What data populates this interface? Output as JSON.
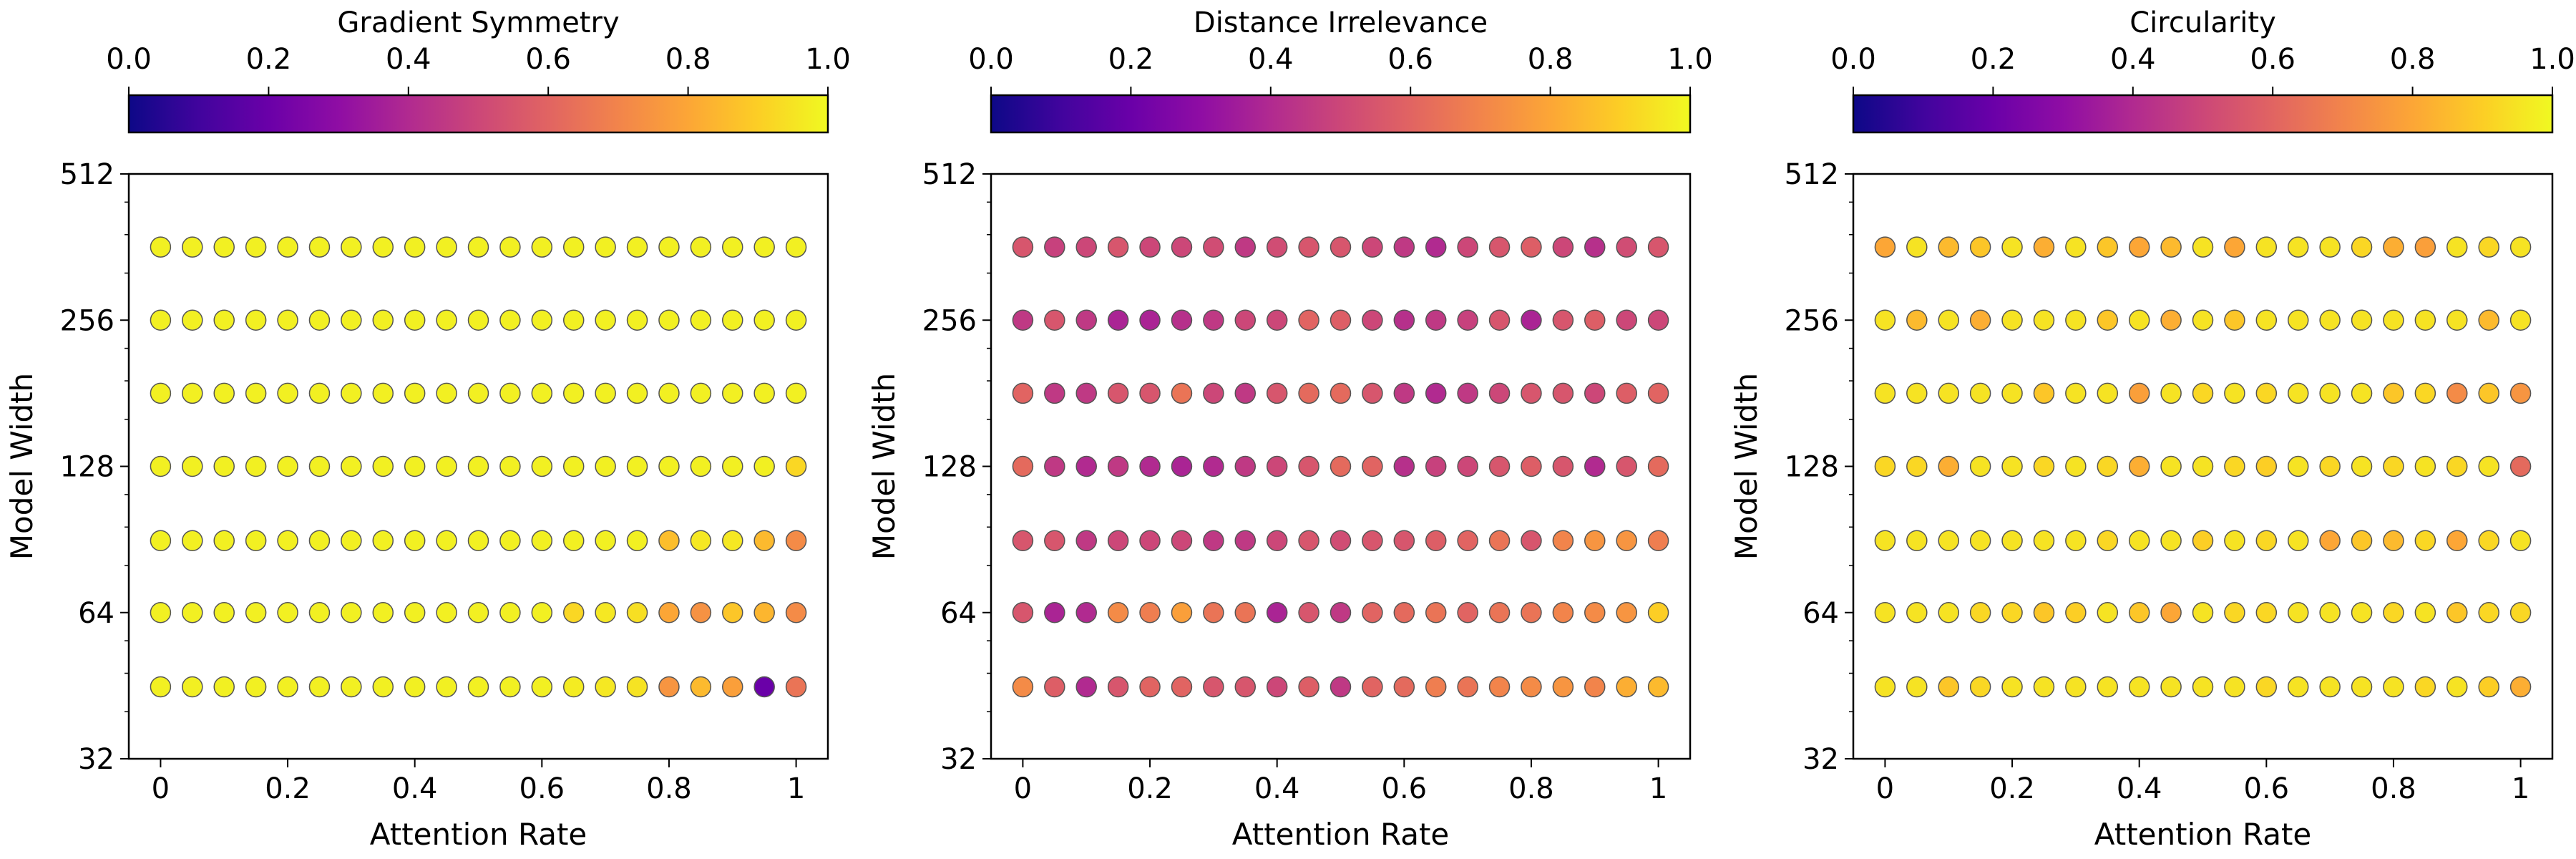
{
  "chart_data": [
    {
      "type": "scatter",
      "colorbar_title": "Gradient Symmetry",
      "colorbar_ticks": [
        "0.0",
        "0.2",
        "0.4",
        "0.6",
        "0.8",
        "1.0"
      ],
      "xlabel": "Attention Rate",
      "ylabel": "Model Width",
      "x_ticks": [
        "0",
        "0.2",
        "0.4",
        "0.6",
        "0.8",
        "1"
      ],
      "y_ticks": [
        "32",
        "64",
        "128",
        "256",
        "512"
      ],
      "y_scale": "log2",
      "xlim": [
        -0.05,
        1.05
      ],
      "ylim": [
        32,
        512
      ],
      "x": [
        0,
        0.05,
        0.1,
        0.15,
        0.2,
        0.25,
        0.3,
        0.35,
        0.4,
        0.45,
        0.5,
        0.55,
        0.6,
        0.65,
        0.7,
        0.75,
        0.8,
        0.85,
        0.9,
        0.95,
        1.0
      ],
      "y": [
        45,
        64,
        90,
        128,
        181,
        256,
        362
      ],
      "values": [
        [
          0.98,
          0.98,
          0.98,
          0.98,
          0.98,
          0.98,
          0.98,
          0.98,
          0.98,
          0.98,
          0.98,
          0.98,
          0.98,
          0.97,
          0.96,
          0.95,
          0.75,
          0.85,
          0.78,
          0.2,
          0.65
        ],
        [
          0.98,
          0.98,
          0.98,
          0.98,
          0.98,
          0.98,
          0.98,
          0.98,
          0.98,
          0.98,
          0.98,
          0.98,
          0.98,
          0.92,
          0.96,
          0.94,
          0.8,
          0.74,
          0.88,
          0.84,
          0.72
        ],
        [
          0.98,
          0.98,
          0.98,
          0.98,
          0.98,
          0.98,
          0.98,
          0.98,
          0.98,
          0.98,
          0.98,
          0.98,
          0.98,
          0.98,
          0.98,
          0.98,
          0.86,
          0.96,
          0.96,
          0.85,
          0.72
        ],
        [
          0.98,
          0.98,
          0.98,
          0.98,
          0.98,
          0.98,
          0.98,
          0.98,
          0.98,
          0.98,
          0.98,
          0.98,
          0.98,
          0.98,
          0.98,
          0.98,
          0.98,
          0.98,
          0.98,
          0.98,
          0.92
        ],
        [
          0.98,
          0.98,
          0.98,
          0.98,
          0.98,
          0.98,
          0.98,
          0.98,
          0.98,
          0.98,
          0.98,
          0.98,
          0.98,
          0.98,
          0.98,
          0.98,
          0.98,
          0.98,
          0.98,
          0.98,
          0.98
        ],
        [
          0.98,
          0.98,
          0.98,
          0.98,
          0.98,
          0.98,
          0.98,
          0.98,
          0.98,
          0.98,
          0.98,
          0.98,
          0.98,
          0.98,
          0.98,
          0.98,
          0.98,
          0.98,
          0.98,
          0.98,
          0.98
        ],
        [
          0.98,
          0.98,
          0.98,
          0.98,
          0.98,
          0.98,
          0.98,
          0.98,
          0.98,
          0.98,
          0.98,
          0.98,
          0.98,
          0.98,
          0.98,
          0.98,
          0.98,
          0.98,
          0.98,
          0.98,
          0.98
        ]
      ]
    },
    {
      "type": "scatter",
      "colorbar_title": "Distance Irrelevance",
      "colorbar_ticks": [
        "0.0",
        "0.2",
        "0.4",
        "0.6",
        "0.8",
        "1.0"
      ],
      "xlabel": "Attention Rate",
      "ylabel": "Model Width",
      "x_ticks": [
        "0",
        "0.2",
        "0.4",
        "0.6",
        "0.8",
        "1"
      ],
      "y_ticks": [
        "32",
        "64",
        "128",
        "256",
        "512"
      ],
      "y_scale": "log2",
      "xlim": [
        -0.05,
        1.05
      ],
      "ylim": [
        32,
        512
      ],
      "x": [
        0,
        0.05,
        0.1,
        0.15,
        0.2,
        0.25,
        0.3,
        0.35,
        0.4,
        0.45,
        0.5,
        0.55,
        0.6,
        0.65,
        0.7,
        0.75,
        0.8,
        0.85,
        0.9,
        0.95,
        1.0
      ],
      "y": [
        45,
        64,
        90,
        128,
        181,
        256,
        362
      ],
      "values": [
        [
          0.72,
          0.58,
          0.4,
          0.55,
          0.6,
          0.6,
          0.55,
          0.55,
          0.5,
          0.58,
          0.45,
          0.6,
          0.62,
          0.68,
          0.65,
          0.7,
          0.72,
          0.75,
          0.7,
          0.82,
          0.85
        ],
        [
          0.55,
          0.38,
          0.4,
          0.72,
          0.68,
          0.78,
          0.65,
          0.65,
          0.38,
          0.55,
          0.45,
          0.6,
          0.62,
          0.65,
          0.6,
          0.65,
          0.65,
          0.7,
          0.72,
          0.75,
          0.9
        ],
        [
          0.55,
          0.55,
          0.45,
          0.5,
          0.5,
          0.5,
          0.45,
          0.45,
          0.5,
          0.55,
          0.52,
          0.55,
          0.55,
          0.58,
          0.6,
          0.65,
          0.55,
          0.7,
          0.75,
          0.75,
          0.68
        ],
        [
          0.62,
          0.45,
          0.4,
          0.45,
          0.4,
          0.38,
          0.4,
          0.45,
          0.5,
          0.55,
          0.62,
          0.6,
          0.42,
          0.48,
          0.5,
          0.55,
          0.58,
          0.55,
          0.4,
          0.55,
          0.62
        ],
        [
          0.6,
          0.45,
          0.45,
          0.55,
          0.55,
          0.65,
          0.5,
          0.45,
          0.55,
          0.62,
          0.62,
          0.55,
          0.45,
          0.4,
          0.45,
          0.5,
          0.55,
          0.55,
          0.5,
          0.58,
          0.6
        ],
        [
          0.45,
          0.55,
          0.45,
          0.38,
          0.38,
          0.42,
          0.45,
          0.5,
          0.5,
          0.6,
          0.58,
          0.5,
          0.42,
          0.45,
          0.48,
          0.55,
          0.38,
          0.55,
          0.58,
          0.5,
          0.5
        ],
        [
          0.55,
          0.48,
          0.5,
          0.55,
          0.5,
          0.5,
          0.52,
          0.45,
          0.52,
          0.55,
          0.55,
          0.5,
          0.45,
          0.4,
          0.5,
          0.55,
          0.58,
          0.5,
          0.42,
          0.52,
          0.55
        ]
      ]
    },
    {
      "type": "scatter",
      "colorbar_title": "Circularity",
      "colorbar_ticks": [
        "0.0",
        "0.2",
        "0.4",
        "0.6",
        "0.8",
        "1.0"
      ],
      "xlabel": "Attention Rate",
      "ylabel": "Model Width",
      "x_ticks": [
        "0",
        "0.2",
        "0.4",
        "0.6",
        "0.8",
        "1"
      ],
      "y_ticks": [
        "32",
        "64",
        "128",
        "256",
        "512"
      ],
      "y_scale": "log2",
      "xlim": [
        -0.05,
        1.05
      ],
      "ylim": [
        32,
        512
      ],
      "x": [
        0,
        0.05,
        0.1,
        0.15,
        0.2,
        0.25,
        0.3,
        0.35,
        0.4,
        0.45,
        0.5,
        0.55,
        0.6,
        0.65,
        0.7,
        0.75,
        0.8,
        0.85,
        0.9,
        0.95,
        1.0
      ],
      "y": [
        45,
        64,
        90,
        128,
        181,
        256,
        362
      ],
      "values": [
        [
          0.95,
          0.95,
          0.88,
          0.92,
          0.95,
          0.95,
          0.95,
          0.95,
          0.95,
          0.95,
          0.95,
          0.95,
          0.92,
          0.95,
          0.95,
          0.95,
          0.95,
          0.92,
          0.95,
          0.9,
          0.82
        ],
        [
          0.95,
          0.95,
          0.95,
          0.92,
          0.92,
          0.88,
          0.9,
          0.95,
          0.88,
          0.8,
          0.95,
          0.92,
          0.92,
          0.95,
          0.95,
          0.95,
          0.92,
          0.95,
          0.88,
          0.92,
          0.92
        ],
        [
          0.95,
          0.95,
          0.95,
          0.95,
          0.95,
          0.95,
          0.95,
          0.92,
          0.95,
          0.95,
          0.9,
          0.95,
          0.92,
          0.95,
          0.8,
          0.88,
          0.85,
          0.92,
          0.8,
          0.92,
          0.95
        ],
        [
          0.92,
          0.92,
          0.82,
          0.95,
          0.95,
          0.92,
          0.95,
          0.92,
          0.82,
          0.95,
          0.95,
          0.92,
          0.9,
          0.95,
          0.92,
          0.95,
          0.92,
          0.95,
          0.92,
          0.95,
          0.62
        ],
        [
          0.95,
          0.95,
          0.95,
          0.95,
          0.95,
          0.88,
          0.95,
          0.95,
          0.78,
          0.95,
          0.92,
          0.95,
          0.92,
          0.95,
          0.95,
          0.95,
          0.88,
          0.92,
          0.72,
          0.88,
          0.75
        ],
        [
          0.95,
          0.85,
          0.95,
          0.82,
          0.95,
          0.95,
          0.95,
          0.88,
          0.95,
          0.82,
          0.95,
          0.88,
          0.95,
          0.95,
          0.95,
          0.95,
          0.95,
          0.95,
          0.95,
          0.85,
          0.95
        ],
        [
          0.8,
          0.95,
          0.85,
          0.88,
          0.95,
          0.82,
          0.95,
          0.88,
          0.8,
          0.85,
          0.95,
          0.8,
          0.95,
          0.95,
          0.95,
          0.92,
          0.82,
          0.78,
          0.95,
          0.92,
          0.95
        ]
      ]
    }
  ]
}
